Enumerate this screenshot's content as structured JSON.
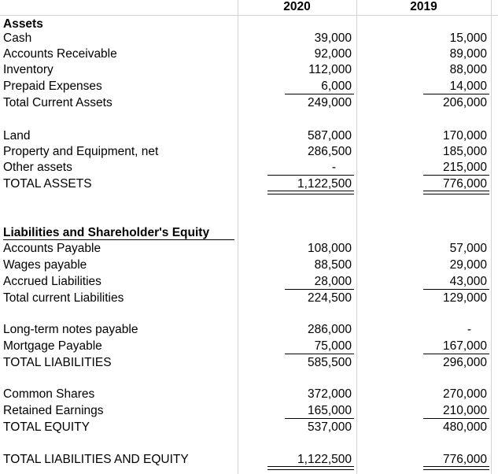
{
  "header": {
    "year1": "2020",
    "year2": "2019"
  },
  "rows": [
    {
      "label": "Assets",
      "v1": "",
      "v2": ""
    },
    {
      "label": "Cash",
      "v1": "39,000",
      "v2": "15,000"
    },
    {
      "label": "Accounts Receivable",
      "v1": "92,000",
      "v2": "89,000"
    },
    {
      "label": "Inventory",
      "v1": "112,000",
      "v2": "88,000"
    },
    {
      "label": "Prepaid Expenses",
      "v1": "6,000",
      "v2": "14,000"
    },
    {
      "label": "Total Current Assets",
      "v1": "249,000",
      "v2": "206,000"
    },
    {
      "label": "Land",
      "v1": "587,000",
      "v2": "170,000"
    },
    {
      "label": "Property and Equipment, net",
      "v1": "286,500",
      "v2": "185,000"
    },
    {
      "label": "Other assets",
      "v1": "-",
      "v2": "215,000"
    },
    {
      "label": "TOTAL ASSETS",
      "v1": "1,122,500",
      "v2": "776,000"
    },
    {
      "label": "Liabilities and Shareholder's Equity",
      "v1": "",
      "v2": ""
    },
    {
      "label": "Accounts Payable",
      "v1": "108,000",
      "v2": "57,000"
    },
    {
      "label": "Wages payable",
      "v1": "88,500",
      "v2": "29,000"
    },
    {
      "label": "Accrued Liabilities",
      "v1": "28,000",
      "v2": "43,000"
    },
    {
      "label": "Total current Liabilities",
      "v1": "224,500",
      "v2": "129,000"
    },
    {
      "label": "Long-term notes payable",
      "v1": "286,000",
      "v2": "-"
    },
    {
      "label": "Mortgage Payable",
      "v1": "75,000",
      "v2": "167,000"
    },
    {
      "label": "TOTAL LIABILITIES",
      "v1": "585,500",
      "v2": "296,000"
    },
    {
      "label": "Common Shares",
      "v1": "372,000",
      "v2": "270,000"
    },
    {
      "label": "Retained Earnings",
      "v1": "165,000",
      "v2": "210,000"
    },
    {
      "label": "TOTAL EQUITY",
      "v1": "537,000",
      "v2": "480,000"
    },
    {
      "label": "TOTAL LIABILITIES AND EQUITY",
      "v1": "1,122,500",
      "v2": "776,000"
    }
  ]
}
